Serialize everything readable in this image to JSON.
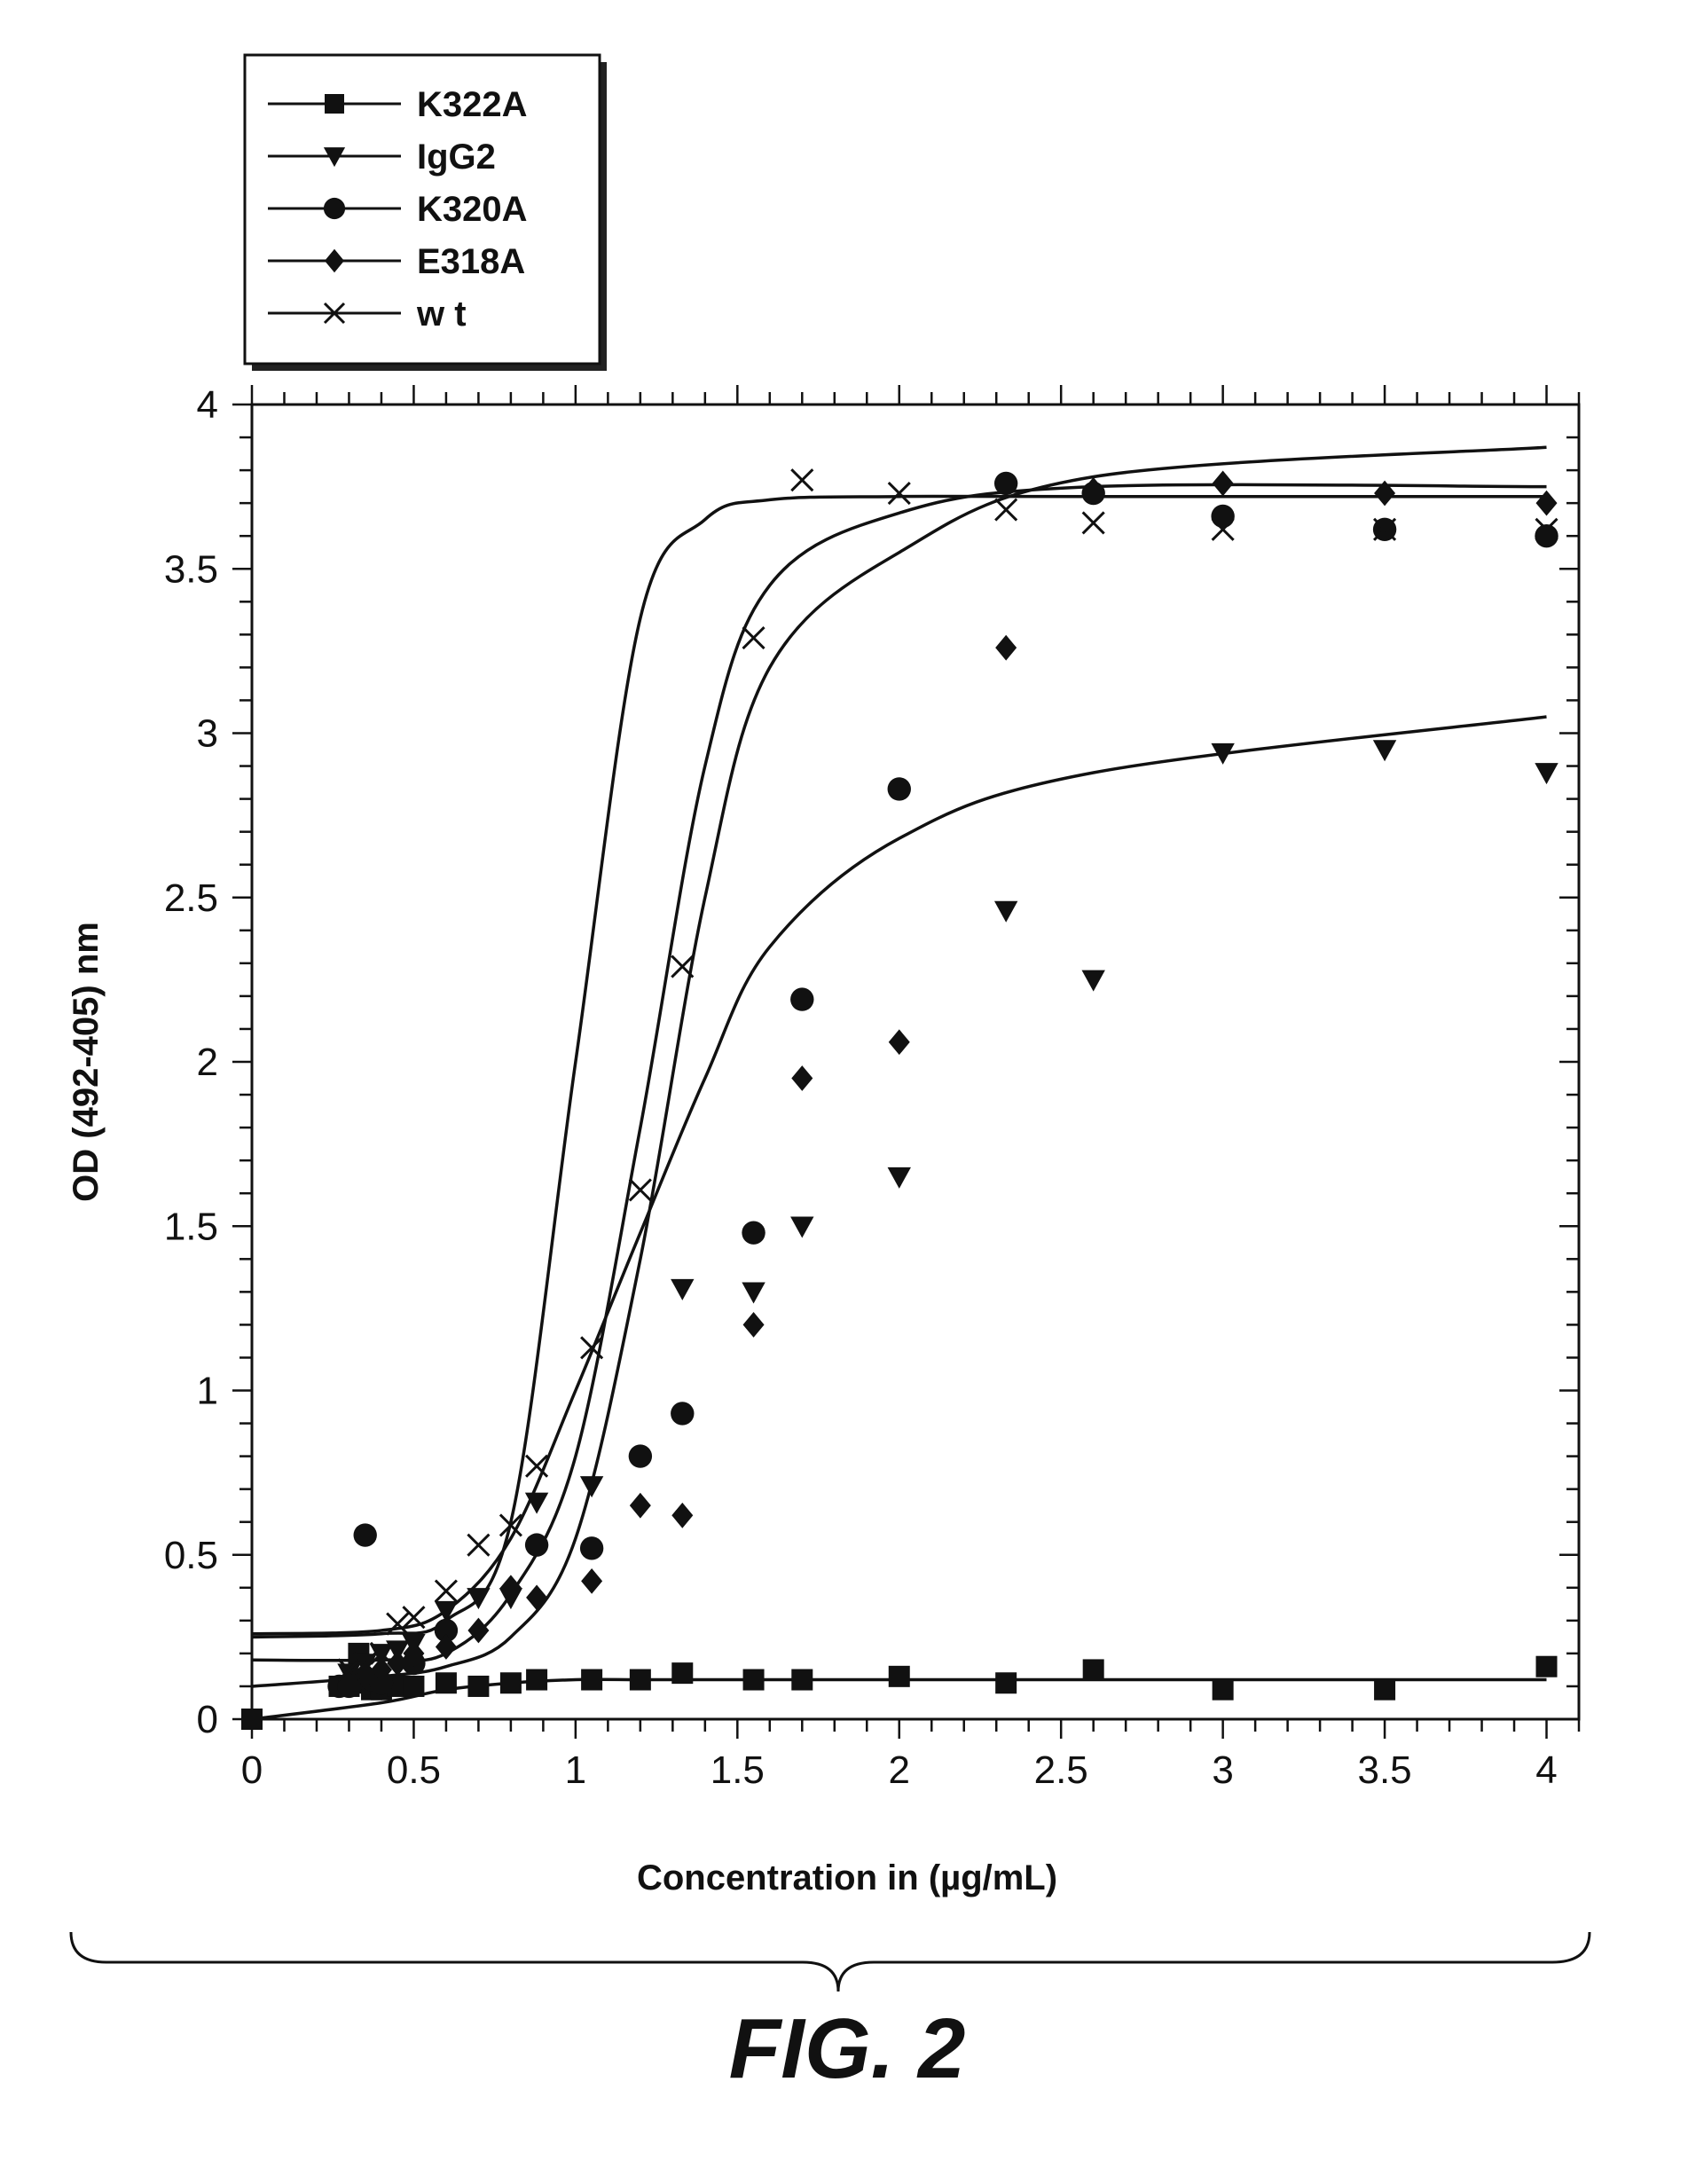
{
  "chart_data": {
    "type": "scatter",
    "title": "",
    "xlabel": "Concentration in (µg/mL)",
    "ylabel": "OD (492-405) nm",
    "xlim": [
      0,
      4.1
    ],
    "ylim": [
      0,
      4
    ],
    "x_ticks": [
      "0",
      "0.5",
      "1",
      "1.5",
      "2",
      "2.5",
      "3",
      "3.5",
      "4"
    ],
    "y_ticks": [
      "0",
      "0.5",
      "1",
      "1.5",
      "2",
      "2.5",
      "3",
      "3.5",
      "4"
    ],
    "x_minor_step": 0.1,
    "y_minor_step": 0.1,
    "grid": false,
    "legend_position": "top-left, outside plot",
    "caption": "FIG. 2",
    "series": [
      {
        "name": "K322A",
        "marker": "square",
        "x": [
          0,
          0.27,
          0.3,
          0.33,
          0.35,
          0.37,
          0.4,
          0.45,
          0.5,
          0.6,
          0.7,
          0.8,
          0.88,
          1.05,
          1.2,
          1.33,
          1.55,
          1.7,
          2.0,
          2.33,
          2.6,
          3.0,
          3.5,
          4.0
        ],
        "y": [
          0,
          0.1,
          0.1,
          0.2,
          0.11,
          0.09,
          0.09,
          0.1,
          0.1,
          0.11,
          0.1,
          0.11,
          0.12,
          0.12,
          0.12,
          0.14,
          0.12,
          0.12,
          0.13,
          0.11,
          0.15,
          0.09,
          0.09,
          0.16
        ],
        "fit": [
          0,
          0.05,
          0.09,
          0.11,
          0.12,
          0.12,
          0.12,
          0.12,
          0.12,
          0.12,
          0.12
        ]
      },
      {
        "name": "IgG2",
        "marker": "triangle-down",
        "x": [
          0.3,
          0.35,
          0.4,
          0.45,
          0.5,
          0.6,
          0.7,
          0.8,
          0.88,
          1.05,
          1.33,
          1.55,
          1.7,
          2.0,
          2.33,
          2.6,
          3.0,
          3.5,
          4.0
        ],
        "y": [
          0.14,
          0.17,
          0.2,
          0.21,
          0.23,
          0.33,
          0.37,
          0.37,
          0.66,
          0.71,
          1.31,
          1.3,
          1.5,
          1.65,
          2.46,
          2.25,
          2.94,
          2.95,
          2.88
        ],
        "fit": [
          0.26,
          0.27,
          0.33,
          0.55,
          1.0,
          1.48,
          1.95,
          2.35,
          2.68,
          2.88,
          3.05
        ]
      },
      {
        "name": "K320A",
        "marker": "circle",
        "x": [
          0.27,
          0.3,
          0.32,
          0.35,
          0.37,
          0.4,
          0.5,
          0.6,
          0.88,
          1.05,
          1.2,
          1.33,
          1.55,
          1.7,
          2.0,
          2.33,
          2.6,
          3.0,
          3.5,
          4.0
        ],
        "y": [
          0.1,
          0.1,
          0.12,
          0.56,
          0.12,
          0.11,
          0.17,
          0.27,
          0.53,
          0.52,
          0.8,
          0.93,
          1.48,
          2.19,
          2.83,
          3.76,
          3.73,
          3.66,
          3.62,
          3.6
        ],
        "fit": [
          0.18,
          0.18,
          0.2,
          0.38,
          0.8,
          1.8,
          2.9,
          3.45,
          3.67,
          3.75,
          3.75
        ]
      },
      {
        "name": "E318A",
        "marker": "diamond",
        "x": [
          0.3,
          0.35,
          0.4,
          0.45,
          0.5,
          0.6,
          0.7,
          0.8,
          0.88,
          1.05,
          1.2,
          1.33,
          1.55,
          1.7,
          2.0,
          2.33,
          2.6,
          3.0,
          3.5,
          4.0
        ],
        "y": [
          0.12,
          0.13,
          0.15,
          0.17,
          0.2,
          0.22,
          0.27,
          0.4,
          0.37,
          0.42,
          0.65,
          0.62,
          1.2,
          1.95,
          2.06,
          3.26,
          3.74,
          3.76,
          3.73,
          3.7
        ],
        "fit": [
          0.1,
          0.13,
          0.16,
          0.25,
          0.55,
          1.4,
          2.5,
          3.2,
          3.55,
          3.78,
          3.87
        ]
      },
      {
        "name": "w t",
        "marker": "x",
        "x": [
          0.3,
          0.35,
          0.4,
          0.45,
          0.5,
          0.6,
          0.7,
          0.8,
          0.88,
          1.05,
          1.2,
          1.33,
          1.55,
          1.7,
          2.0,
          2.33,
          2.6,
          3.0,
          3.5,
          4.0
        ],
        "y": [
          0.15,
          0.17,
          0.2,
          0.29,
          0.31,
          0.39,
          0.53,
          0.59,
          0.77,
          1.13,
          1.61,
          2.29,
          3.29,
          3.77,
          3.73,
          3.68,
          3.64,
          3.62,
          3.62,
          3.62
        ],
        "fit": [
          0.25,
          0.26,
          0.3,
          0.6,
          2.0,
          3.35,
          3.65,
          3.71,
          3.72,
          3.72,
          3.72
        ]
      }
    ],
    "fit_x": [
      0,
      0.4,
      0.6,
      0.8,
      1.0,
      1.2,
      1.4,
      1.6,
      2.0,
      2.6,
      4.0
    ]
  }
}
